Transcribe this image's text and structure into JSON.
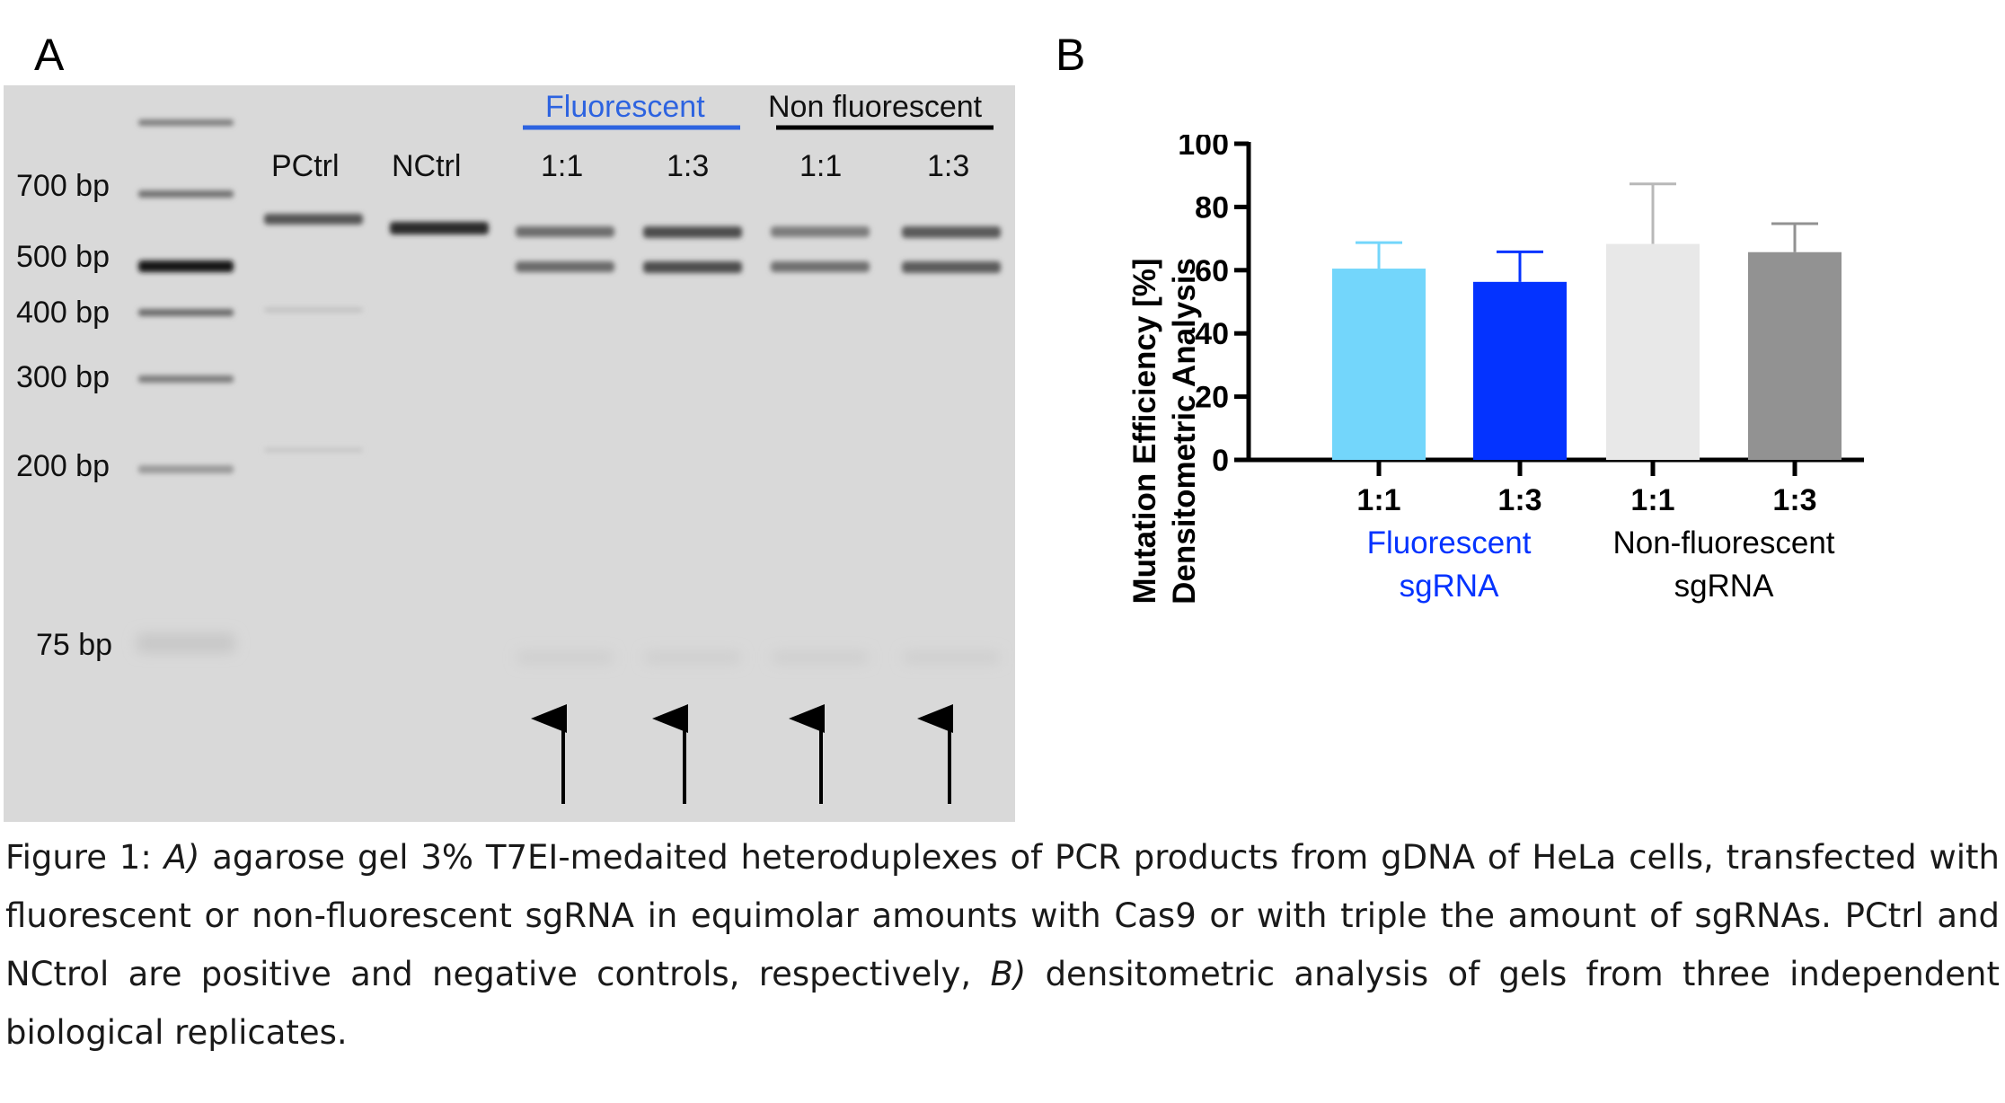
{
  "panel_a": {
    "letter": "A",
    "ladder_labels": [
      "700 bp",
      "500 bp",
      "400 bp",
      "300 bp",
      "200 bp",
      "75 bp"
    ],
    "lanes": [
      "PCtrl",
      "NCtrl",
      "1:1",
      "1:3",
      "1:1",
      "1:3"
    ],
    "group_fluorescent": "Fluorescent",
    "group_non_fluorescent": "Non fluorescent",
    "fluorescent_color": "#2d63e0"
  },
  "panel_b": {
    "letter": "B"
  },
  "chart_data": {
    "type": "bar",
    "ylabel_line1": "Mutation Efficiency [%]",
    "ylabel_line2": "Densitometric Analysis",
    "ylim": [
      0,
      100
    ],
    "yticks": [
      "0",
      "20",
      "40",
      "60",
      "80",
      "100"
    ],
    "categories": [
      "1:1",
      "1:3",
      "1:1",
      "1:3"
    ],
    "values": [
      60.5,
      56.3,
      68.3,
      65.7
    ],
    "errors": [
      8.2,
      9.5,
      19.0,
      9.0
    ],
    "colors": [
      "#73d6fb",
      "#0433ff",
      "#e8e8e8",
      "#929292"
    ],
    "error_colors": [
      "#73d6fb",
      "#0433ff",
      "#b8b8b8",
      "#929292"
    ],
    "groups": [
      {
        "line1": "Fluorescent",
        "line2": "sgRNA",
        "color": "#0433ff"
      },
      {
        "line1": "Non-fluorescent",
        "line2": "sgRNA",
        "color": "#000000"
      }
    ]
  },
  "caption": {
    "prefix": "Figure 1: ",
    "a_label": "A)",
    "a_text": " agarose gel 3% T7EI-medaited heteroduplexes of PCR products from gDNA of HeLa cells, transfected with fluorescent or non-fluorescent sgRNA in equimolar amounts with Cas9 or with triple the amount of sgRNAs. PCtrl and NCtrol are positive and negative controls, respectively, ",
    "b_label": "B)",
    "b_text": " densitometric analysis of gels from three independent biological replicates."
  }
}
